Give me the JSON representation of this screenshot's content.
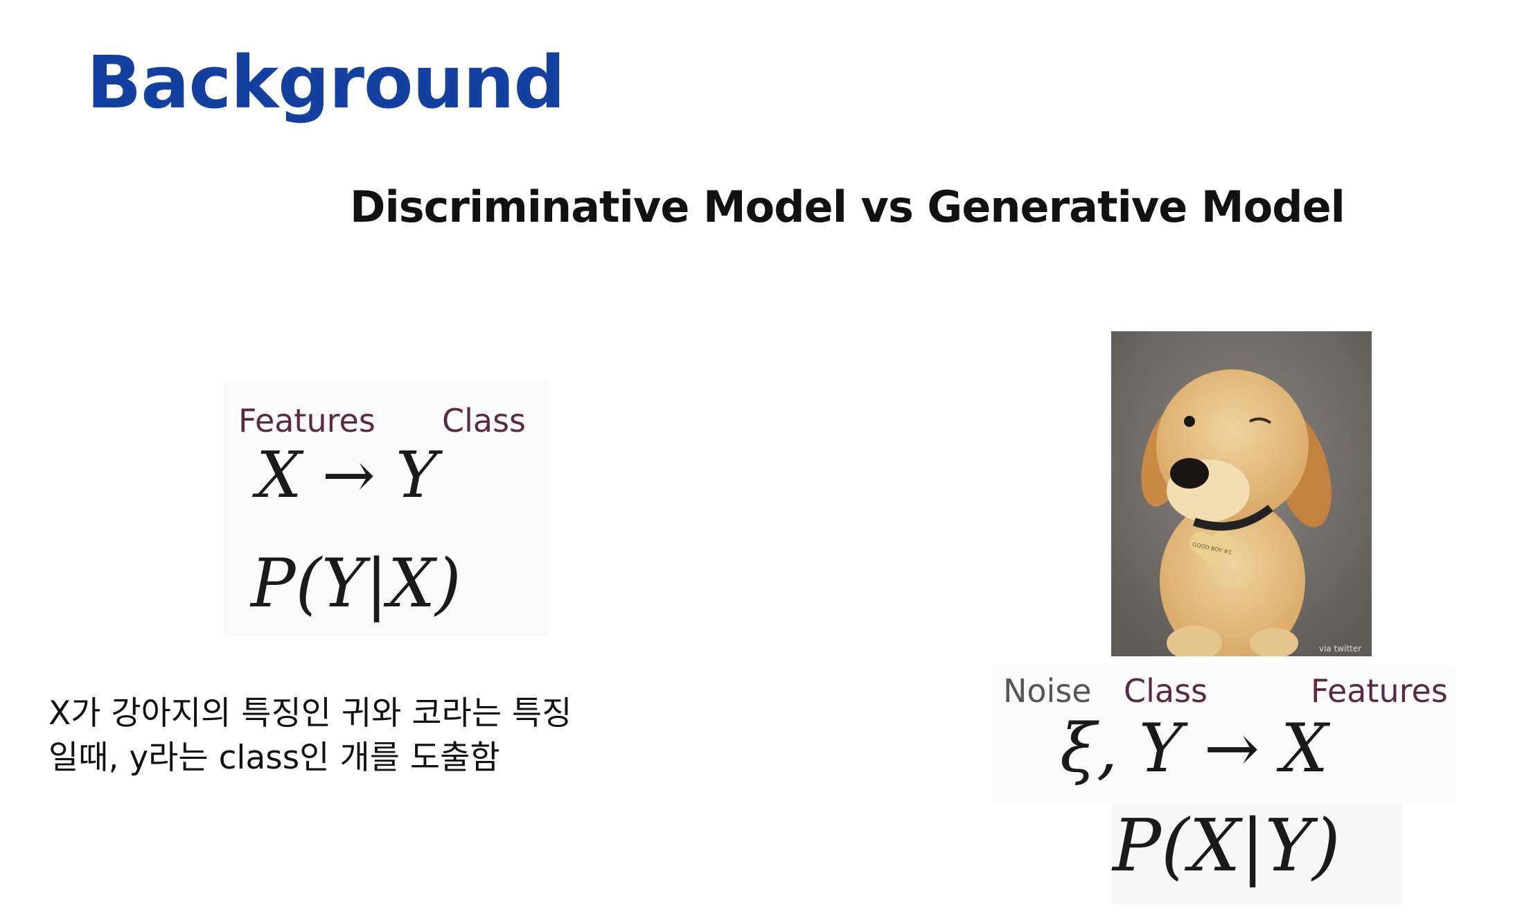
{
  "slide": {
    "title": "Background",
    "subtitle": "Discriminative Model vs Generative Model"
  },
  "discriminative": {
    "label_features": "Features",
    "label_class": "Class",
    "mapping": "X → Y",
    "probability": "P(Y|X)",
    "description": "X가 강아지의 특징인 귀와 코라는 특징 일때, y라는 class인 개를 도출함"
  },
  "generative": {
    "image": {
      "subject": "winking golden retriever puppy",
      "tag_text": "GOOD BOY #1",
      "credit": "via twitter"
    },
    "label_noise": "Noise",
    "label_class": "Class",
    "label_features": "Features",
    "mapping": "ξ, Y → X",
    "probability": "P(X|Y)"
  },
  "colors": {
    "title": "#1440a0",
    "label": "#5a2a42",
    "noise_label": "#555555"
  }
}
